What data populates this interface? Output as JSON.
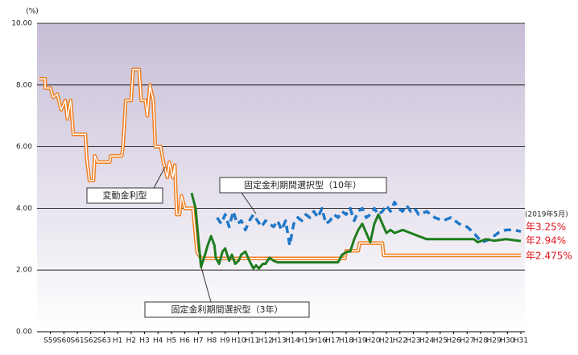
{
  "chart_data": {
    "type": "line",
    "y_unit": "(%)",
    "xlim": [
      -1,
      35.3
    ],
    "ylim": [
      0,
      10
    ],
    "yticks": [
      {
        "value": 0,
        "label": "0.00"
      },
      {
        "value": 2,
        "label": "2.00"
      },
      {
        "value": 4,
        "label": "4.00"
      },
      {
        "value": 6,
        "label": "6.00"
      },
      {
        "value": 8,
        "label": "8.00"
      },
      {
        "value": 10,
        "label": "10.00"
      }
    ],
    "xticks": [
      {
        "value": 0,
        "label": "S59"
      },
      {
        "value": 1,
        "label": "S60"
      },
      {
        "value": 2,
        "label": "S61"
      },
      {
        "value": 3,
        "label": "S62"
      },
      {
        "value": 4,
        "label": "S63"
      },
      {
        "value": 5,
        "label": "H1"
      },
      {
        "value": 6,
        "label": "H2"
      },
      {
        "value": 7,
        "label": "H3"
      },
      {
        "value": 8,
        "label": "H4"
      },
      {
        "value": 9,
        "label": "H5"
      },
      {
        "value": 10,
        "label": "H6"
      },
      {
        "value": 11,
        "label": "H7"
      },
      {
        "value": 12,
        "label": "H8"
      },
      {
        "value": 13,
        "label": "H9"
      },
      {
        "value": 14,
        "label": "H10"
      },
      {
        "value": 15,
        "label": "H11"
      },
      {
        "value": 16,
        "label": "H12"
      },
      {
        "value": 17,
        "label": "H13"
      },
      {
        "value": 18,
        "label": "H14"
      },
      {
        "value": 19,
        "label": "H15"
      },
      {
        "value": 20,
        "label": "H16"
      },
      {
        "value": 21,
        "label": "H17"
      },
      {
        "value": 22,
        "label": "H18"
      },
      {
        "value": 23,
        "label": "H19"
      },
      {
        "value": 24,
        "label": "H20"
      },
      {
        "value": 25,
        "label": "H21"
      },
      {
        "value": 26,
        "label": "H22"
      },
      {
        "value": 27,
        "label": "H23"
      },
      {
        "value": 28,
        "label": "H24"
      },
      {
        "value": 29,
        "label": "H25"
      },
      {
        "value": 30,
        "label": "H26"
      },
      {
        "value": 31,
        "label": "H27"
      },
      {
        "value": 32,
        "label": "H28"
      },
      {
        "value": 33,
        "label": "H29"
      },
      {
        "value": 34,
        "label": "H30"
      },
      {
        "value": 35,
        "label": "H31"
      }
    ],
    "grid": true,
    "series": [
      {
        "name": "変動金利型",
        "color": "#f07f22",
        "style": "double",
        "x": [
          -0.84,
          -0.4,
          -0.4,
          0.0,
          0.2,
          0.5,
          0.8,
          1.1,
          1.25,
          1.5,
          1.7,
          2.6,
          2.7,
          2.9,
          3.2,
          3.3,
          3.5,
          4.4,
          4.5,
          5.3,
          5.4,
          5.6,
          6.0,
          6.15,
          6.6,
          6.75,
          7.05,
          7.2,
          7.4,
          7.65,
          7.8,
          8.2,
          8.4,
          8.7,
          8.85,
          9.1,
          9.25,
          9.4,
          9.6,
          9.75,
          10.0,
          10.6,
          10.9,
          11.2,
          21.9,
          22.0,
          22.9,
          23.0,
          24.7,
          24.8,
          35.0
        ],
        "values": [
          8.2,
          8.2,
          7.9,
          7.9,
          7.6,
          7.7,
          7.2,
          7.5,
          6.9,
          7.5,
          6.4,
          6.4,
          5.6,
          4.9,
          4.9,
          5.7,
          5.5,
          5.5,
          5.7,
          5.7,
          6.0,
          7.5,
          7.5,
          8.5,
          8.5,
          7.5,
          7.5,
          7.0,
          8.0,
          7.5,
          6.0,
          6.0,
          5.5,
          5.0,
          5.5,
          5.0,
          5.4,
          3.8,
          3.8,
          4.4,
          4.0,
          4.0,
          2.6,
          2.375,
          2.375,
          2.625,
          2.625,
          2.875,
          2.875,
          2.475,
          2.475
        ]
      },
      {
        "name": "固定金利期間選択型（10年）",
        "color": "#1f78c8",
        "style": "dashed",
        "x": [
          12.4,
          12.7,
          13.0,
          13.3,
          13.6,
          13.9,
          14.2,
          14.5,
          14.8,
          15.1,
          15.4,
          15.7,
          16.0,
          16.6,
          16.9,
          17.2,
          17.5,
          17.8,
          18.1,
          18.4,
          18.7,
          19.0,
          19.3,
          19.6,
          19.9,
          20.2,
          20.5,
          20.8,
          21.1,
          21.4,
          21.7,
          22.0,
          22.3,
          22.6,
          22.9,
          23.2,
          23.5,
          23.8,
          24.1,
          24.4,
          24.7,
          25.0,
          25.3,
          25.6,
          25.9,
          26.2,
          26.5,
          26.8,
          27.1,
          27.4,
          28.0,
          28.6,
          29.2,
          29.8,
          30.4,
          31.0,
          31.5,
          32.1,
          32.7,
          33.3,
          33.9,
          34.5,
          35.0
        ],
        "values": [
          3.7,
          3.5,
          3.8,
          3.4,
          3.9,
          3.5,
          3.6,
          3.3,
          3.6,
          3.8,
          3.6,
          3.4,
          3.6,
          3.4,
          3.6,
          3.3,
          3.6,
          2.8,
          3.5,
          3.7,
          3.6,
          3.8,
          3.7,
          3.9,
          3.7,
          4.0,
          3.5,
          3.6,
          3.8,
          3.7,
          3.9,
          3.8,
          4.0,
          3.6,
          3.9,
          4.0,
          3.7,
          3.8,
          4.0,
          3.8,
          3.9,
          4.1,
          3.9,
          4.2,
          4.0,
          3.9,
          4.1,
          3.9,
          4.0,
          3.8,
          3.9,
          3.7,
          3.6,
          3.7,
          3.5,
          3.4,
          3.2,
          2.9,
          3.0,
          3.2,
          3.3,
          3.3,
          3.25
        ]
      },
      {
        "name": "固定金利期間選択型（3年）",
        "color": "#1e7d1e",
        "style": "solid",
        "x": [
          10.5,
          10.8,
          11.05,
          11.2,
          11.5,
          11.7,
          11.95,
          12.2,
          12.3,
          12.55,
          12.8,
          13.0,
          13.3,
          13.5,
          13.75,
          14.0,
          14.2,
          14.5,
          14.8,
          15.1,
          15.3,
          15.5,
          15.8,
          16.0,
          16.3,
          16.6,
          16.9,
          21.4,
          21.7,
          22.1,
          22.3,
          22.6,
          22.9,
          23.2,
          23.5,
          23.8,
          24.1,
          24.4,
          24.7,
          25.0,
          25.3,
          25.6,
          26.2,
          26.8,
          27.4,
          28.0,
          31.5,
          31.8,
          32.4,
          33.0,
          33.9,
          35.0
        ],
        "values": [
          4.5,
          4.0,
          2.8,
          2.1,
          2.5,
          2.8,
          3.1,
          2.8,
          2.4,
          2.2,
          2.6,
          2.7,
          2.3,
          2.5,
          2.2,
          2.3,
          2.5,
          2.6,
          2.3,
          2.05,
          2.15,
          2.05,
          2.2,
          2.2,
          2.4,
          2.3,
          2.25,
          2.25,
          2.5,
          2.6,
          2.6,
          3.0,
          3.3,
          3.5,
          3.2,
          2.9,
          3.5,
          3.8,
          3.5,
          3.2,
          3.3,
          3.2,
          3.3,
          3.2,
          3.1,
          3.0,
          3.0,
          2.9,
          3.0,
          2.95,
          3.0,
          2.94
        ]
      }
    ],
    "annotations": [
      "(2019年5月)",
      "年3.25%",
      "年2.94%",
      "年2.475%"
    ]
  }
}
